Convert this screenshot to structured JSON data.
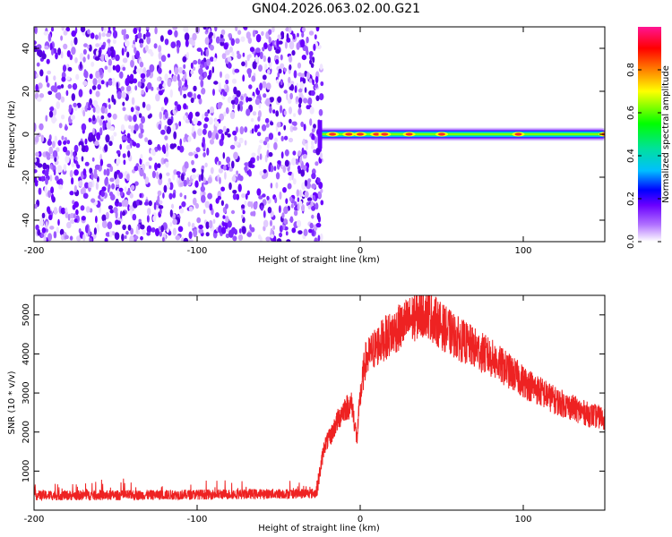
{
  "title": "GN04.2026.063.02.00.G21",
  "chart_data": [
    {
      "type": "heatmap",
      "title": "GN04.2026.063.02.00.G21",
      "xlabel": "Height of straight line (km)",
      "ylabel": "Frequency (Hz)",
      "xlim": [
        -200,
        150
      ],
      "ylim": [
        -50,
        50
      ],
      "x_ticks": [
        -200,
        -100,
        0,
        100
      ],
      "y_ticks": [
        -40,
        -20,
        0,
        20,
        40
      ],
      "noise_region_x": [
        -200,
        -25
      ],
      "signal_band": {
        "x_start": -25,
        "x_end": 150,
        "center_freq": 0,
        "half_width": 3
      },
      "peaks_x": [
        -17,
        -7,
        0,
        10,
        15,
        30,
        50,
        97,
        150
      ],
      "colorbar": {
        "label": "Normalized spectral amplitude",
        "range": [
          0,
          1
        ],
        "ticks": [
          0.0,
          0.2,
          0.4,
          0.6,
          0.8
        ],
        "colors": [
          "#ffffff",
          "#b070ff",
          "#6a00ff",
          "#0000ff",
          "#00bfff",
          "#00e0a0",
          "#00ff00",
          "#ffff00",
          "#ff8000",
          "#ff0000",
          "#ff1493"
        ]
      }
    },
    {
      "type": "line",
      "xlabel": "Height of straight line (km)",
      "ylabel": "SNR (10 * v/v)",
      "xlim": [
        -200,
        150
      ],
      "ylim": [
        0,
        5500
      ],
      "x_ticks": [
        -200,
        -100,
        0,
        100
      ],
      "y_ticks": [
        1000,
        2000,
        3000,
        4000,
        5000
      ],
      "color": "#ee2222",
      "series": [
        {
          "name": "SNR",
          "x": [
            -200,
            -150,
            -100,
            -50,
            -27,
            -25,
            -22,
            -18,
            -15,
            -10,
            -5,
            -2,
            0,
            3,
            8,
            15,
            25,
            35,
            40,
            45,
            50,
            60,
            80,
            100,
            120,
            140,
            150
          ],
          "y": [
            380,
            380,
            400,
            420,
            430,
            900,
            1650,
            1900,
            2200,
            2600,
            2700,
            1800,
            2900,
            3800,
            4100,
            4400,
            4700,
            5000,
            5100,
            4900,
            4700,
            4400,
            3900,
            3300,
            2800,
            2450,
            2350
          ]
        }
      ]
    }
  ]
}
